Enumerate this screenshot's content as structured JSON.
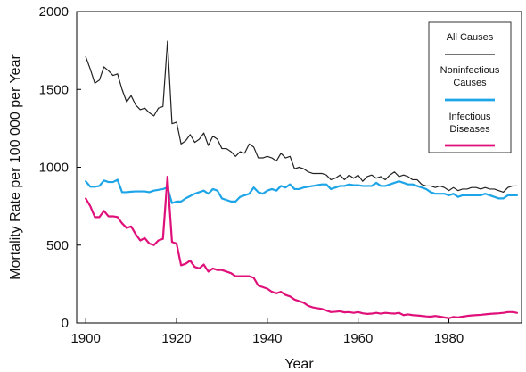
{
  "chart_data": {
    "type": "line",
    "title": "",
    "xlabel": "Year",
    "ylabel": "Mortality Rate per 100 000 per Year",
    "xlim": [
      1898,
      1996
    ],
    "ylim": [
      0,
      2000
    ],
    "x_ticks": [
      "1900",
      "1920",
      "1940",
      "1960",
      "1980"
    ],
    "y_ticks": [
      "0",
      "500",
      "1000",
      "1500",
      "2000"
    ],
    "grid": false,
    "legend": {
      "placement": "top-right",
      "entries": [
        {
          "lines": [
            "All Causes"
          ]
        },
        {
          "lines": [
            "Noninfectious",
            "Causes"
          ]
        },
        {
          "lines": [
            "Infectious",
            "Diseases"
          ]
        }
      ]
    },
    "x": [
      1900,
      1901,
      1902,
      1903,
      1904,
      1905,
      1906,
      1907,
      1908,
      1909,
      1910,
      1911,
      1912,
      1913,
      1914,
      1915,
      1916,
      1917,
      1918,
      1919,
      1920,
      1921,
      1922,
      1923,
      1924,
      1925,
      1926,
      1927,
      1928,
      1929,
      1930,
      1931,
      1932,
      1933,
      1934,
      1935,
      1936,
      1937,
      1938,
      1939,
      1940,
      1941,
      1942,
      1943,
      1944,
      1945,
      1946,
      1947,
      1948,
      1949,
      1950,
      1951,
      1952,
      1953,
      1954,
      1955,
      1956,
      1957,
      1958,
      1959,
      1960,
      1961,
      1962,
      1963,
      1964,
      1965,
      1966,
      1967,
      1968,
      1969,
      1970,
      1971,
      1972,
      1973,
      1974,
      1975,
      1976,
      1977,
      1978,
      1979,
      1980,
      1981,
      1982,
      1983,
      1984,
      1985,
      1986,
      1987,
      1988,
      1989,
      1990,
      1991,
      1992,
      1993,
      1994,
      1995
    ],
    "series": [
      {
        "name": "All Causes",
        "color": "#222222",
        "values": [
          1710,
          1630,
          1540,
          1560,
          1645,
          1620,
          1590,
          1600,
          1500,
          1420,
          1460,
          1400,
          1370,
          1380,
          1350,
          1330,
          1380,
          1390,
          1810,
          1280,
          1290,
          1150,
          1170,
          1210,
          1160,
          1180,
          1220,
          1140,
          1200,
          1180,
          1120,
          1120,
          1100,
          1070,
          1100,
          1090,
          1150,
          1130,
          1060,
          1060,
          1070,
          1060,
          1040,
          1090,
          1060,
          1070,
          990,
          1000,
          990,
          970,
          960,
          960,
          960,
          950,
          920,
          930,
          950,
          920,
          950,
          930,
          950,
          910,
          940,
          950,
          930,
          940,
          920,
          950,
          970,
          940,
          950,
          940,
          920,
          920,
          890,
          880,
          880,
          870,
          880,
          870,
          850,
          870,
          850,
          860,
          860,
          870,
          870,
          860,
          870,
          860,
          860,
          850,
          840,
          870,
          880,
          880
        ],
        "fill_line": false
      },
      {
        "name": "Noninfectious Causes",
        "color": "#1ea5e8",
        "values": [
          910,
          875,
          875,
          880,
          915,
          905,
          905,
          920,
          840,
          840,
          843,
          845,
          845,
          845,
          840,
          850,
          855,
          860,
          870,
          770,
          780,
          780,
          800,
          815,
          830,
          840,
          850,
          830,
          860,
          850,
          800,
          790,
          780,
          780,
          810,
          820,
          830,
          870,
          840,
          830,
          850,
          860,
          850,
          880,
          870,
          890,
          860,
          860,
          870,
          875,
          880,
          885,
          890,
          890,
          860,
          870,
          880,
          880,
          890,
          885,
          885,
          880,
          880,
          880,
          900,
          880,
          880,
          890,
          900,
          910,
          900,
          890,
          890,
          880,
          870,
          860,
          840,
          830,
          830,
          830,
          820,
          830,
          810,
          820,
          820,
          820,
          820,
          820,
          830,
          820,
          810,
          800,
          800,
          820,
          820,
          820
        ]
      },
      {
        "name": "Infectious Diseases",
        "color": "#e0107a",
        "values": [
          800,
          750,
          680,
          680,
          720,
          685,
          685,
          680,
          640,
          610,
          620,
          570,
          530,
          545,
          510,
          500,
          530,
          540,
          940,
          520,
          510,
          370,
          380,
          400,
          360,
          350,
          375,
          330,
          350,
          340,
          340,
          330,
          320,
          300,
          300,
          300,
          300,
          290,
          240,
          230,
          220,
          200,
          190,
          200,
          180,
          170,
          150,
          140,
          130,
          110,
          100,
          95,
          90,
          80,
          70,
          72,
          75,
          68,
          70,
          65,
          70,
          62,
          58,
          60,
          65,
          60,
          65,
          62,
          60,
          65,
          50,
          55,
          50,
          48,
          45,
          42,
          40,
          45,
          40,
          35,
          30,
          38,
          35,
          40,
          45,
          48,
          50,
          52,
          55,
          58,
          60,
          62,
          65,
          70,
          70,
          65
        ]
      }
    ],
    "colors": {
      "axes": "#000000",
      "all_causes": "#222222",
      "noninfectious": "#1ea5e8",
      "infectious": "#e0107a",
      "legend_border": "#333333"
    }
  }
}
